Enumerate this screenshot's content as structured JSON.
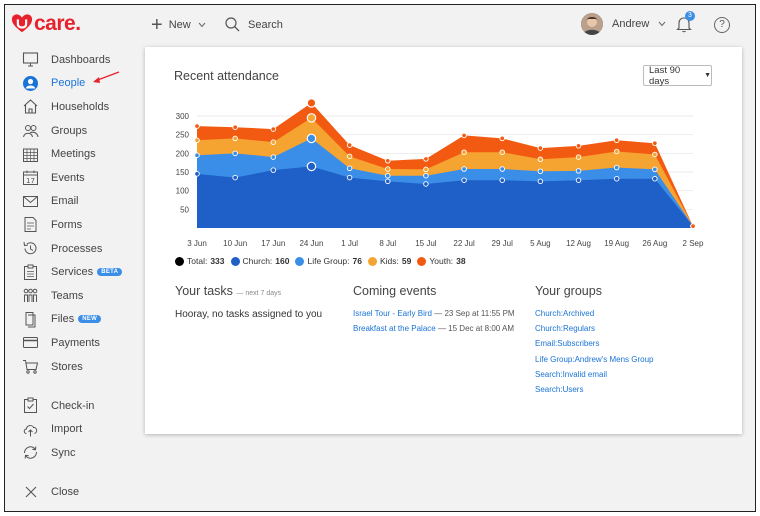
{
  "brand": {
    "name": "care.",
    "accent": "#e8222d"
  },
  "sidebar": {
    "items": [
      {
        "label": "Dashboards",
        "icon": "monitor-icon"
      },
      {
        "label": "People",
        "icon": "person-icon",
        "active": true
      },
      {
        "label": "Households",
        "icon": "house-icon"
      },
      {
        "label": "Groups",
        "icon": "groups-icon"
      },
      {
        "label": "Meetings",
        "icon": "calendar-grid-icon"
      },
      {
        "label": "Events",
        "icon": "calendar-17-icon"
      },
      {
        "label": "Email",
        "icon": "envelope-icon"
      },
      {
        "label": "Forms",
        "icon": "form-icon"
      },
      {
        "label": "Processes",
        "icon": "history-icon"
      },
      {
        "label": "Services",
        "icon": "clipboard-icon",
        "badge": "BETA"
      },
      {
        "label": "Teams",
        "icon": "team-icon"
      },
      {
        "label": "Files",
        "icon": "file-icon",
        "badge": "NEW"
      },
      {
        "label": "Payments",
        "icon": "card-icon"
      },
      {
        "label": "Stores",
        "icon": "cart-icon"
      }
    ],
    "lower": [
      {
        "label": "Check-in",
        "icon": "checkin-icon"
      },
      {
        "label": "Import",
        "icon": "cloud-upload-icon"
      },
      {
        "label": "Sync",
        "icon": "sync-icon"
      }
    ],
    "close_label": "Close",
    "calendar_day": "17"
  },
  "topbar": {
    "new_label": "New",
    "search_label": "Search",
    "user_name": "Andrew",
    "notification_count": "3",
    "help_glyph": "?"
  },
  "attendance": {
    "title": "Recent attendance",
    "range": "Last 90 days",
    "colors": {
      "youth": "#f25a12",
      "kids": "#f5a431",
      "lifegroup": "#3b8ee8",
      "church": "#1e5fc8",
      "total": "#000000"
    },
    "legend": [
      {
        "label": "Total:",
        "value": "333",
        "color": "#000000"
      },
      {
        "label": "Church:",
        "value": "160",
        "color": "#1e5fc8"
      },
      {
        "label": "Life Group:",
        "value": "76",
        "color": "#3b8ee8"
      },
      {
        "label": "Kids:",
        "value": "59",
        "color": "#f5a431"
      },
      {
        "label": "Youth:",
        "value": "38",
        "color": "#f25a12"
      }
    ]
  },
  "chart_data": {
    "type": "area",
    "stacked": true,
    "categories": [
      "3 Jun",
      "10 Jun",
      "17 Jun",
      "24 Jun",
      "1 Jul",
      "8 Jul",
      "15 Jul",
      "22 Jul",
      "29 Jul",
      "5 Aug",
      "12 Aug",
      "19 Aug",
      "26 Aug",
      "2 Sep"
    ],
    "y_ticks": [
      50,
      100,
      150,
      200,
      250,
      300
    ],
    "ylim": [
      0,
      325
    ],
    "grid": true,
    "series": [
      {
        "name": "Church",
        "values": [
          145,
          135,
          155,
          165,
          135,
          125,
          118,
          128,
          128,
          125,
          128,
          132,
          132,
          5
        ]
      },
      {
        "name": "Life Group",
        "values": [
          50,
          65,
          35,
          75,
          25,
          15,
          22,
          30,
          30,
          27,
          25,
          30,
          25,
          0
        ]
      },
      {
        "name": "Kids",
        "values": [
          40,
          40,
          40,
          55,
          32,
          18,
          17,
          45,
          45,
          32,
          37,
          43,
          40,
          0
        ]
      },
      {
        "name": "Youth",
        "values": [
          38,
          30,
          35,
          40,
          30,
          22,
          28,
          45,
          37,
          30,
          30,
          30,
          30,
          0
        ]
      }
    ]
  },
  "tasks": {
    "title": "Your tasks",
    "subtitle": "— next 7 days",
    "empty_message": "Hooray, no tasks assigned to you"
  },
  "events": {
    "title": "Coming events",
    "items": [
      {
        "name": "Israel Tour - Early Bird",
        "when": "— 23 Sep at 11:55 PM"
      },
      {
        "name": "Breakfast at the Palace",
        "when": "— 15 Dec at 8:00 AM"
      }
    ]
  },
  "groups": {
    "title": "Your groups",
    "items": [
      "Church:Archived",
      "Church:Regulars",
      "Email:Subscribers",
      "Life Group:Andrew's Mens Group",
      "Search:Invalid email",
      "Search:Users"
    ]
  }
}
